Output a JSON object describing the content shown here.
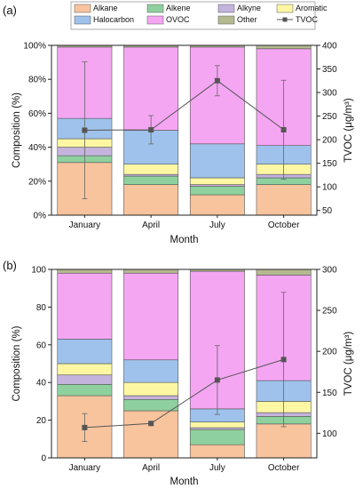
{
  "chart_data": [
    {
      "panel_label": "(a)",
      "type": "bar",
      "stacked": true,
      "categories": [
        "January",
        "April",
        "July",
        "October"
      ],
      "xlabel": "Month",
      "ylabel": "Composition (%)",
      "y2label": "TVOC (μg/m³)",
      "ylim": [
        0,
        100
      ],
      "y2lim": [
        40,
        400
      ],
      "yticks": [
        "0%",
        "20%",
        "40%",
        "60%",
        "80%",
        "100%"
      ],
      "y2ticks": [
        "50",
        "100",
        "150",
        "200",
        "250",
        "300",
        "350",
        "400"
      ],
      "legend": {
        "placement": "top",
        "entries": [
          "Alkane",
          "Alkene",
          "Alkyne",
          "Aromatic",
          "Halocarbon",
          "OVOC",
          "Other",
          "TVOC"
        ]
      },
      "series": [
        {
          "name": "Alkane",
          "color": "#f8c49e",
          "values": [
            31,
            18,
            12,
            18
          ]
        },
        {
          "name": "Alkene",
          "color": "#8fd19e",
          "values": [
            4,
            5,
            5,
            4
          ]
        },
        {
          "name": "Alkyne",
          "color": "#c4b3dc",
          "values": [
            5,
            1,
            1,
            2
          ]
        },
        {
          "name": "Aromatic",
          "color": "#fdf7a4",
          "values": [
            5,
            6,
            4,
            6
          ]
        },
        {
          "name": "Halocarbon",
          "color": "#9ec2ec",
          "values": [
            12,
            20,
            20,
            11
          ]
        },
        {
          "name": "OVOC",
          "color": "#f5a6f3",
          "values": [
            42,
            49,
            57,
            57
          ]
        },
        {
          "name": "Other",
          "color": "#b5b990",
          "values": [
            1,
            1,
            1,
            2
          ]
        }
      ],
      "line": {
        "name": "TVOC",
        "color": "#555555",
        "values": [
          220,
          221,
          325,
          221
        ],
        "errors": [
          145,
          30,
          32,
          105
        ]
      }
    },
    {
      "panel_label": "(b)",
      "type": "bar",
      "stacked": true,
      "categories": [
        "January",
        "April",
        "July",
        "October"
      ],
      "xlabel": "Month",
      "ylabel": "Composition (%)",
      "y2label": "TVOC (μg/m³)",
      "ylim": [
        0,
        100
      ],
      "y2lim": [
        70,
        300
      ],
      "yticks": [
        "0",
        "20",
        "40",
        "60",
        "80",
        "100"
      ],
      "y2ticks": [
        "100",
        "150",
        "200",
        "250",
        "300"
      ],
      "series": [
        {
          "name": "Alkane",
          "color": "#f8c49e",
          "values": [
            33,
            25,
            7,
            18
          ]
        },
        {
          "name": "Alkene",
          "color": "#8fd19e",
          "values": [
            6,
            6,
            8,
            4
          ]
        },
        {
          "name": "Alkyne",
          "color": "#c4b3dc",
          "values": [
            5,
            2,
            1,
            2
          ]
        },
        {
          "name": "Aromatic",
          "color": "#fdf7a4",
          "values": [
            6,
            7,
            3,
            6
          ]
        },
        {
          "name": "Halocarbon",
          "color": "#9ec2ec",
          "values": [
            13,
            12,
            7,
            11
          ]
        },
        {
          "name": "OVOC",
          "color": "#f5a6f3",
          "values": [
            35,
            46,
            73,
            56
          ]
        },
        {
          "name": "Other",
          "color": "#b5b990",
          "values": [
            2,
            2,
            1,
            3
          ]
        }
      ],
      "line": {
        "name": "TVOC",
        "color": "#555555",
        "values": [
          107,
          112,
          165,
          190
        ],
        "errors": [
          17,
          1,
          42,
          82
        ]
      }
    }
  ]
}
